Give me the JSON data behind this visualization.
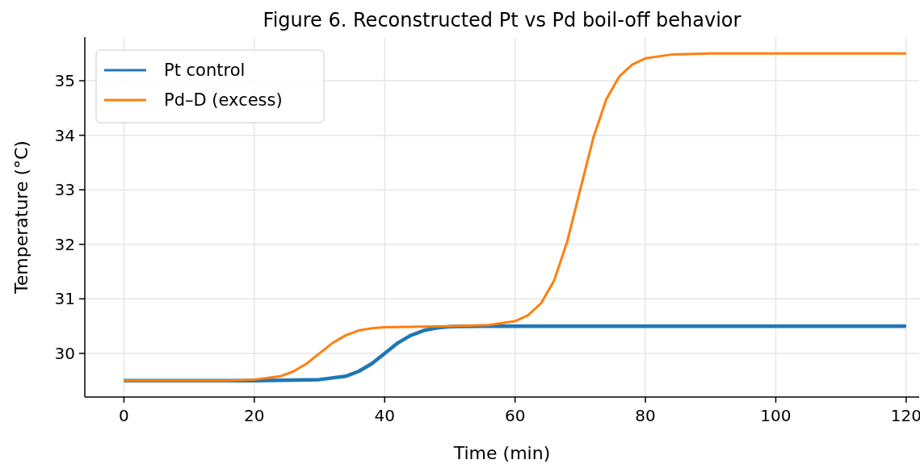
{
  "chart_data": {
    "type": "line",
    "title": "Figure 6. Reconstructed Pt vs Pd boil-off behavior",
    "xlabel": "Time (min)",
    "ylabel": "Temperature (°C)",
    "xlim": [
      -6,
      122
    ],
    "xticks": [
      0,
      20,
      40,
      60,
      80,
      100,
      120
    ],
    "ylim": [
      29.2,
      35.8
    ],
    "yticks": [
      30,
      31,
      32,
      33,
      34,
      35
    ],
    "grid": true,
    "legend": "top left",
    "series": [
      {
        "name": "Pt control",
        "color": "#1f77b4",
        "x": [
          0,
          20,
          30,
          34,
          36,
          38,
          40,
          42,
          44,
          46,
          48,
          50,
          55,
          60,
          120
        ],
        "values": [
          29.5,
          29.5,
          29.52,
          29.58,
          29.67,
          29.81,
          30.0,
          30.19,
          30.33,
          30.42,
          30.47,
          30.49,
          30.5,
          30.5,
          30.5
        ]
      },
      {
        "name": "Pd–D (excess)",
        "color": "#ff7f0e",
        "x": [
          0,
          16,
          20,
          24,
          26,
          28,
          30,
          32,
          34,
          36,
          38,
          40,
          50,
          56,
          60,
          62,
          64,
          66,
          68,
          70,
          72,
          74,
          76,
          78,
          80,
          84,
          90,
          120
        ],
        "values": [
          29.5,
          29.5,
          29.52,
          29.58,
          29.67,
          29.81,
          30.0,
          30.19,
          30.33,
          30.42,
          30.46,
          30.48,
          30.5,
          30.52,
          30.59,
          30.7,
          30.92,
          31.34,
          32.05,
          33.0,
          33.95,
          34.66,
          35.08,
          35.3,
          35.41,
          35.48,
          35.5,
          35.5
        ]
      }
    ]
  }
}
